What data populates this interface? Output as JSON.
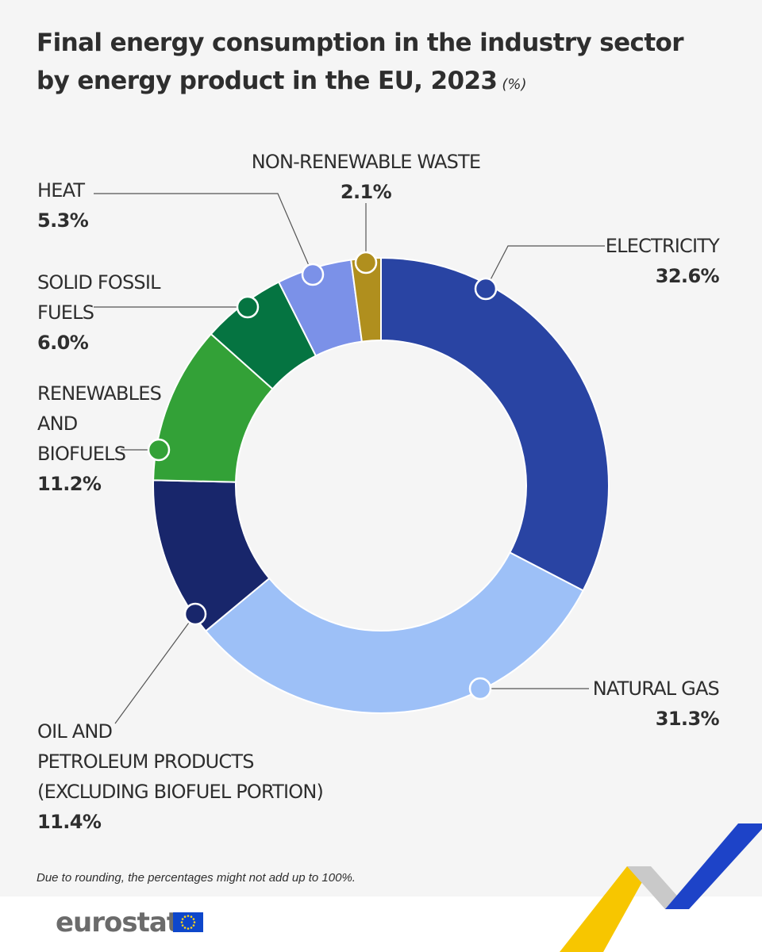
{
  "title": {
    "line1": "Final energy consumption in the industry sector",
    "line2": "by energy product in the EU, 2023",
    "unit": "(%)"
  },
  "chart_data": {
    "type": "pie",
    "variant": "donut",
    "slices": [
      {
        "name": "ELECTRICITY",
        "value": 32.6,
        "label": "32.6%",
        "color": "#2944a3"
      },
      {
        "name": "NATURAL GAS",
        "value": 31.3,
        "label": "31.3%",
        "color": "#9dc0f7"
      },
      {
        "name": "OIL AND PETROLEUM PRODUCTS (EXCLUDING BIOFUEL PORTION)",
        "value": 11.4,
        "label": "11.4%",
        "color": "#18266b"
      },
      {
        "name": "RENEWABLES AND BIOFUELS",
        "value": 11.2,
        "label": "11.2%",
        "color": "#33a137"
      },
      {
        "name": "SOLID FOSSIL FUELS",
        "value": 6.0,
        "label": "6.0%",
        "color": "#057441"
      },
      {
        "name": "HEAT",
        "value": 5.3,
        "label": "5.3%",
        "color": "#7b91e8"
      },
      {
        "name": "NON-RENEWABLE WASTE",
        "value": 2.1,
        "label": "2.1%",
        "color": "#b08f1e"
      }
    ]
  },
  "labels": {
    "electricity": {
      "lines": [
        "ELECTRICITY"
      ],
      "value": "32.6%"
    },
    "natural_gas": {
      "lines": [
        "NATURAL GAS"
      ],
      "value": "31.3%"
    },
    "oil": {
      "lines": [
        "OIL AND",
        "PETROLEUM PRODUCTS",
        "(EXCLUDING BIOFUEL PORTION)"
      ],
      "value": "11.4%"
    },
    "renewables": {
      "lines": [
        "RENEWABLES",
        "AND",
        "BIOFUELS"
      ],
      "value": "11.2%"
    },
    "solid_fossil": {
      "lines": [
        "SOLID FOSSIL",
        "FUELS"
      ],
      "value": "6.0%"
    },
    "heat": {
      "lines": [
        "HEAT"
      ],
      "value": "5.3%"
    },
    "waste": {
      "lines": [
        "NON-RENEWABLE WASTE"
      ],
      "value": "2.1%"
    }
  },
  "footnote": "Due to rounding, the percentages might not add up to 100%.",
  "footer": {
    "logo_text": "eurostat"
  },
  "colors": {
    "flag_blue": "#0e47cb",
    "flag_star": "#ffd617",
    "ribbon_yellow": "#f7c600",
    "ribbon_blue": "#1d43c8"
  }
}
